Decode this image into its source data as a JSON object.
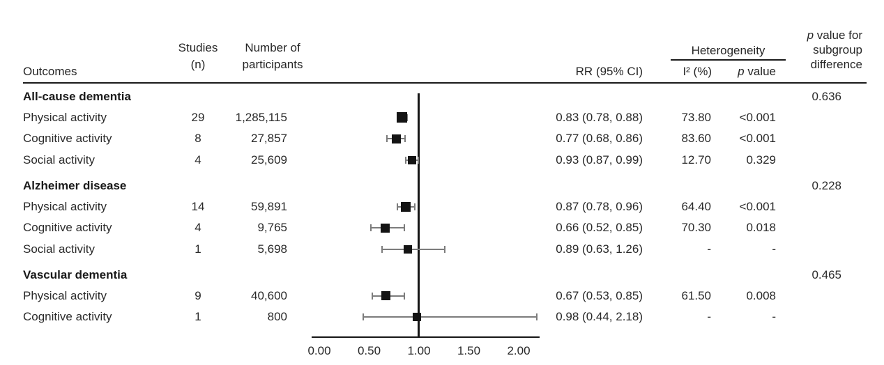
{
  "figure": {
    "background": "#ffffff",
    "text_color": "#2a2a2a",
    "marker_color": "#141414",
    "whisker_color": "#7c7c7c",
    "line_color": "#1a1a1a"
  },
  "header": {
    "outcomes": "Outcomes",
    "studies_line1": "Studies",
    "studies_line2": "(n)",
    "participants_line1": "Number of",
    "participants_line2": "participants",
    "rr": "RR (95% CI)",
    "heterogeneity": "Heterogeneity",
    "i2": "I² (%)",
    "p_italic": "p",
    "p_rest": " value",
    "subgroup_line1_italic": "p",
    "subgroup_line1_rest": " value for",
    "subgroup_line2": "subgroup",
    "subgroup_line3": "difference"
  },
  "chart_data": {
    "type": "scatter",
    "subtype": "forest-plot",
    "title": "",
    "xlabel": "",
    "ylabel": "",
    "x_axis": {
      "range_shown": [
        0,
        2.2
      ],
      "tick_labels": [
        "0.00",
        "0.50",
        "1.00",
        "1.50",
        "2.00"
      ],
      "tick_values": [
        0,
        0.5,
        1.0,
        1.5,
        2.0
      ],
      "reference_line": 1.0
    },
    "groups": [
      {
        "name": "All-cause dementia",
        "subgroup_p": "0.636",
        "rows": [
          {
            "label": "Physical activity",
            "studies": "29",
            "participants": "1,285,115",
            "rr": 0.83,
            "ci_low": 0.78,
            "ci_high": 0.88,
            "rr_text": "0.83 (0.78, 0.88)",
            "i2": "73.80",
            "p": "<0.001",
            "marker": 15
          },
          {
            "label": "Cognitive activity",
            "studies": "8",
            "participants": "27,857",
            "rr": 0.77,
            "ci_low": 0.68,
            "ci_high": 0.86,
            "rr_text": "0.77 (0.68, 0.86)",
            "i2": "83.60",
            "p": "<0.001",
            "marker": 13
          },
          {
            "label": "Social activity",
            "studies": "4",
            "participants": "25,609",
            "rr": 0.93,
            "ci_low": 0.87,
            "ci_high": 0.99,
            "rr_text": "0.93 (0.87, 0.99)",
            "i2": "12.70",
            "p": "0.329",
            "marker": 12
          }
        ]
      },
      {
        "name": "Alzheimer disease",
        "subgroup_p": "0.228",
        "rows": [
          {
            "label": "Physical activity",
            "studies": "14",
            "participants": "59,891",
            "rr": 0.87,
            "ci_low": 0.78,
            "ci_high": 0.96,
            "rr_text": "0.87 (0.78, 0.96)",
            "i2": "64.40",
            "p": "<0.001",
            "marker": 14
          },
          {
            "label": "Cognitive activity",
            "studies": "4",
            "participants": "9,765",
            "rr": 0.66,
            "ci_low": 0.52,
            "ci_high": 0.85,
            "rr_text": "0.66 (0.52, 0.85)",
            "i2": "70.30",
            "p": "0.018",
            "marker": 13
          },
          {
            "label": "Social activity",
            "studies": "1",
            "participants": "5,698",
            "rr": 0.89,
            "ci_low": 0.63,
            "ci_high": 1.26,
            "rr_text": "0.89 (0.63, 1.26)",
            "i2": "-",
            "p": "-",
            "marker": 12
          }
        ]
      },
      {
        "name": "Vascular dementia",
        "subgroup_p": "0.465",
        "rows": [
          {
            "label": "Physical activity",
            "studies": "9",
            "participants": "40,600",
            "rr": 0.67,
            "ci_low": 0.53,
            "ci_high": 0.85,
            "rr_text": "0.67 (0.53, 0.85)",
            "i2": "61.50",
            "p": "0.008",
            "marker": 13
          },
          {
            "label": "Cognitive activity",
            "studies": "1",
            "participants": "800",
            "rr": 0.98,
            "ci_low": 0.44,
            "ci_high": 2.18,
            "rr_text": "0.98 (0.44, 2.18)",
            "i2": "-",
            "p": "-",
            "marker": 12
          }
        ]
      }
    ]
  }
}
